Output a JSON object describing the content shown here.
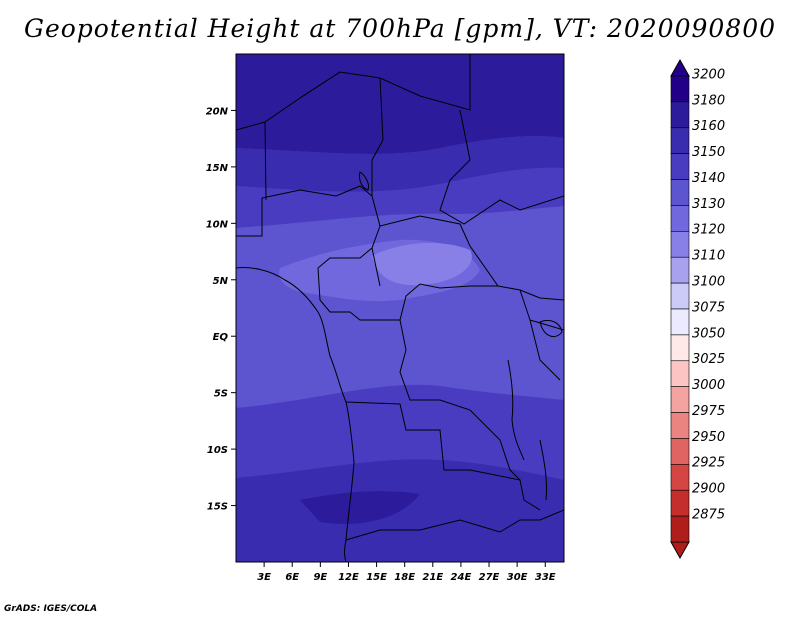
{
  "title": "Geopotential Height at 700hPa [gpm], VT: 2020090800",
  "credit": "GrADS: IGES/COLA",
  "map": {
    "lat_range": [
      -20,
      25
    ],
    "lon_range": [
      0,
      35
    ],
    "lat_ticks": [
      {
        "value": 20,
        "label": "20N"
      },
      {
        "value": 15,
        "label": "15N"
      },
      {
        "value": 10,
        "label": "10N"
      },
      {
        "value": 5,
        "label": "5N"
      },
      {
        "value": 0,
        "label": "EQ"
      },
      {
        "value": -5,
        "label": "5S"
      },
      {
        "value": -10,
        "label": "10S"
      },
      {
        "value": -15,
        "label": "15S"
      }
    ],
    "lon_ticks": [
      {
        "value": 3,
        "label": "3E"
      },
      {
        "value": 6,
        "label": "6E"
      },
      {
        "value": 9,
        "label": "9E"
      },
      {
        "value": 12,
        "label": "12E"
      },
      {
        "value": 15,
        "label": "15E"
      },
      {
        "value": 18,
        "label": "18E"
      },
      {
        "value": 21,
        "label": "21E"
      },
      {
        "value": 24,
        "label": "24E"
      },
      {
        "value": 27,
        "label": "27E"
      },
      {
        "value": 30,
        "label": "30E"
      },
      {
        "value": 33,
        "label": "33E"
      }
    ]
  },
  "colorbar": {
    "levels": [
      {
        "label": "3200",
        "color": "#220088"
      },
      {
        "label": "3180",
        "color": "#2c1c9c"
      },
      {
        "label": "3160",
        "color": "#3a2cae"
      },
      {
        "label": "3150",
        "color": "#4a3cc0"
      },
      {
        "label": "3140",
        "color": "#5d54d0"
      },
      {
        "label": "3130",
        "color": "#7068dc"
      },
      {
        "label": "3120",
        "color": "#8880e6"
      },
      {
        "label": "3110",
        "color": "#a8a2ee"
      },
      {
        "label": "3100",
        "color": "#cccaf6"
      },
      {
        "label": "3075",
        "color": "#eceaff"
      },
      {
        "label": "3050",
        "color": "#ffe8e8"
      },
      {
        "label": "3025",
        "color": "#fcc4c2"
      },
      {
        "label": "3000",
        "color": "#f4a4a0"
      },
      {
        "label": "2975",
        "color": "#ea8480"
      },
      {
        "label": "2950",
        "color": "#e06462"
      },
      {
        "label": "2925",
        "color": "#d44644"
      },
      {
        "label": "2900",
        "color": "#c42e2c"
      },
      {
        "label": "2875",
        "color": "#b01e1c"
      }
    ]
  }
}
